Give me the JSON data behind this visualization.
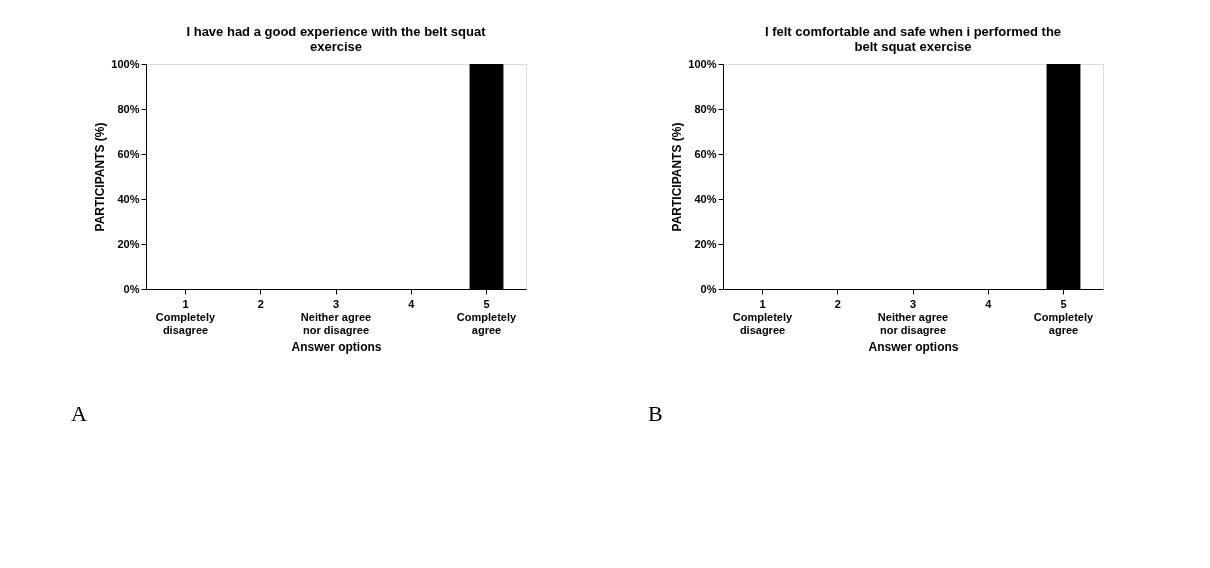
{
  "chart_data": [
    {
      "type": "bar",
      "title": "I have had a good experience with the belt squat exercise",
      "xlabel": "Answer options",
      "ylabel": "PARTICIPANTS (%)",
      "categories": [
        "1\nCompletely\ndisagree",
        "2",
        "3\nNeither agree\nnor disagree",
        "4",
        "5\nCompletely\nagree"
      ],
      "values": [
        0,
        0,
        0,
        0,
        100
      ],
      "color": "#000000",
      "ylim": [
        0,
        100
      ],
      "yticks": [
        {
          "value": 0,
          "label": "0%"
        },
        {
          "value": 20,
          "label": "20%"
        },
        {
          "value": 40,
          "label": "40%"
        },
        {
          "value": 60,
          "label": "60%"
        },
        {
          "value": 80,
          "label": "80%"
        },
        {
          "value": 100,
          "label": "100%"
        }
      ],
      "grid": false,
      "annotations": [
        "A"
      ]
    },
    {
      "type": "bar",
      "title": "I felt comfortable and safe when i performed the belt squat exercise",
      "xlabel": "Answer options",
      "ylabel": "PARTICIPANTS (%)",
      "categories": [
        "1\nCompletely\ndisagree",
        "2",
        "3\nNeither agree\nnor disagree",
        "4",
        "5\nCompletely\nagree"
      ],
      "values": [
        0,
        0,
        0,
        0,
        100
      ],
      "color": "#000000",
      "ylim": [
        0,
        100
      ],
      "yticks": [
        {
          "value": 0,
          "label": "0%"
        },
        {
          "value": 20,
          "label": "20%"
        },
        {
          "value": 40,
          "label": "40%"
        },
        {
          "value": 60,
          "label": "60%"
        },
        {
          "value": 80,
          "label": "80%"
        },
        {
          "value": 100,
          "label": "100%"
        }
      ],
      "grid": false,
      "annotations": [
        "B"
      ]
    }
  ]
}
